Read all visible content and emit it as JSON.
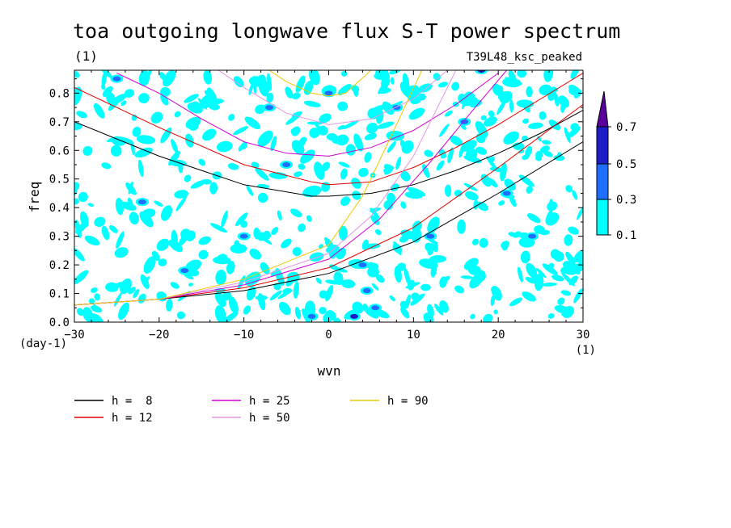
{
  "chart_data": {
    "type": "contour",
    "title": "toa outgoing longwave flux S-T power spectrum",
    "subtitle_left": "(1)",
    "subtitle_right": "T39L48_ksc_peaked",
    "xlabel": "wvn",
    "ylabel": "freq",
    "x_unit": "(1)",
    "y_unit": "(day-1)",
    "xlim": [
      -30,
      30
    ],
    "ylim": [
      0,
      0.88
    ],
    "xticks": [
      -30,
      -20,
      -10,
      0,
      10,
      20,
      30
    ],
    "yticks": [
      0.0,
      0.1,
      0.2,
      0.3,
      0.4,
      0.5,
      0.6,
      0.7,
      0.8
    ],
    "ytick_labels": [
      "0.0",
      "0.1",
      "0.2",
      "0.3",
      "0.4",
      "0.5",
      "0.6",
      "0.7",
      "0.8"
    ],
    "contour_levels": [
      0.1,
      0.3,
      0.5,
      0.7
    ],
    "contour_fill_colors": [
      "#00ffff",
      "#1e6eff",
      "#1e1ec8",
      "#5a009a"
    ],
    "dispersion_curves": [
      {
        "name": "h =  8",
        "h": 8,
        "color": "#000000",
        "x": [
          -30,
          -20,
          -10,
          -2,
          0,
          5,
          10,
          15,
          20,
          25,
          30
        ],
        "y": [
          0.7,
          0.58,
          0.48,
          0.44,
          0.44,
          0.45,
          0.48,
          0.53,
          0.59,
          0.66,
          0.74
        ]
      },
      {
        "name": "h = 12",
        "h": 12,
        "color": "#e00000",
        "x": [
          -30,
          -20,
          -10,
          -2,
          0,
          5,
          10,
          15,
          20,
          25,
          30
        ],
        "y": [
          0.82,
          0.68,
          0.55,
          0.49,
          0.48,
          0.49,
          0.54,
          0.61,
          0.69,
          0.78,
          0.87
        ]
      },
      {
        "name": "h = 25",
        "h": 25,
        "color": "#d000d0",
        "x": [
          -25,
          -20,
          -15,
          -10,
          -5,
          0,
          5,
          10,
          15,
          20
        ],
        "y": [
          0.87,
          0.8,
          0.71,
          0.63,
          0.59,
          0.58,
          0.61,
          0.67,
          0.76,
          0.87
        ]
      },
      {
        "name": "h = 50",
        "h": 50,
        "color": "#e496e4",
        "x": [
          -13,
          -10,
          -5,
          0,
          5,
          10,
          14
        ],
        "y": [
          0.88,
          0.82,
          0.73,
          0.69,
          0.71,
          0.78,
          0.88
        ]
      },
      {
        "name": "h = 90",
        "h": 90,
        "color": "#f0c800",
        "x": [
          -7,
          -5,
          -2,
          0,
          2,
          5
        ],
        "y": [
          0.88,
          0.84,
          0.8,
          0.79,
          0.8,
          0.88
        ]
      }
    ],
    "kelvin_curves": [
      {
        "h": 8,
        "color": "#000000",
        "x": [
          -30,
          -20,
          -10,
          0,
          10,
          20,
          30
        ],
        "y": [
          0.06,
          0.08,
          0.11,
          0.17,
          0.28,
          0.45,
          0.63
        ]
      },
      {
        "h": 12,
        "color": "#e00000",
        "x": [
          -30,
          -20,
          -10,
          0,
          10,
          20,
          30
        ],
        "y": [
          0.06,
          0.08,
          0.12,
          0.19,
          0.33,
          0.54,
          0.76
        ]
      },
      {
        "h": 25,
        "color": "#d000d0",
        "x": [
          -30,
          -20,
          -10,
          0,
          6,
          12,
          17,
          21
        ],
        "y": [
          0.06,
          0.08,
          0.13,
          0.22,
          0.36,
          0.56,
          0.74,
          0.88
        ]
      },
      {
        "h": 50,
        "color": "#e496e4",
        "x": [
          -30,
          -20,
          -10,
          0,
          5,
          10,
          15
        ],
        "y": [
          0.06,
          0.08,
          0.14,
          0.24,
          0.37,
          0.58,
          0.88
        ]
      },
      {
        "h": 90,
        "color": "#f0c800",
        "x": [
          -30,
          -20,
          -10,
          0,
          4,
          8,
          11
        ],
        "y": [
          0.06,
          0.08,
          0.15,
          0.27,
          0.44,
          0.69,
          0.88
        ]
      }
    ],
    "grid": false,
    "legend_position": "bottom-left"
  }
}
